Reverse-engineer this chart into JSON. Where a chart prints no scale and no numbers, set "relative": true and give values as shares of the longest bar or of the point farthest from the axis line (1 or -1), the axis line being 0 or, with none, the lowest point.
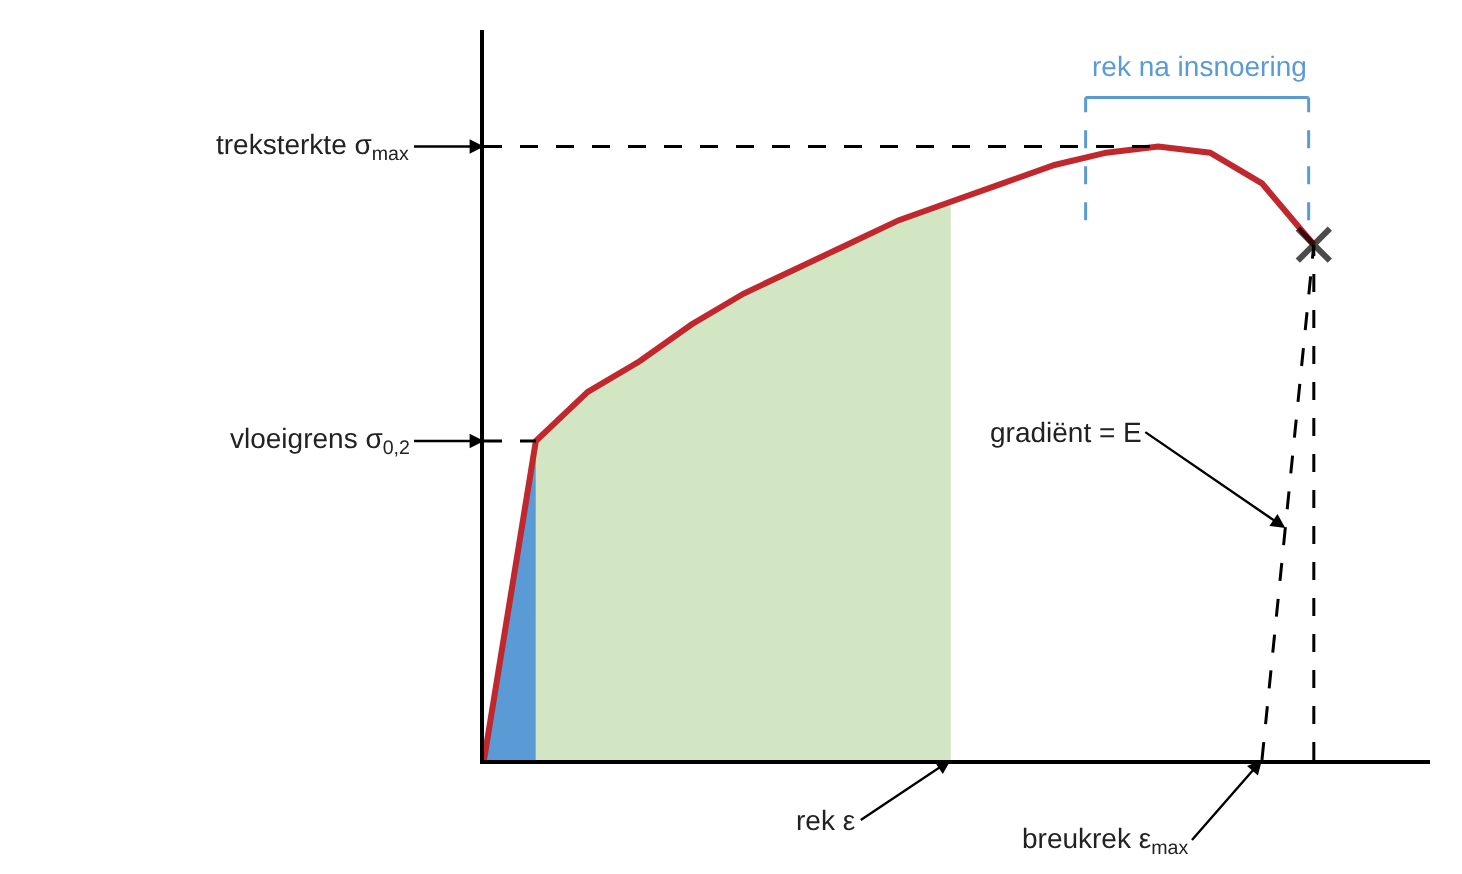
{
  "chart_data": {
    "type": "line",
    "relative": true,
    "grid": false,
    "legend": false,
    "categories": [
      null,
      null,
      null,
      null,
      null,
      null,
      null,
      null,
      null,
      null,
      null,
      null,
      null,
      null,
      null,
      null,
      null
    ],
    "series": [
      {
        "color": "#c0282d",
        "values": [
          0,
          0.52,
          0.6,
          0.65,
          0.71,
          0.76,
          0.8,
          0.84,
          0.88,
          0.91,
          0.94,
          0.97,
          0.99,
          1.0,
          0.99,
          0.94,
          0.84
        ]
      },
      {
        "color": "#000000",
        "line_style": "dashed",
        "marker": "cross",
        "values": [
          null,
          null,
          null,
          null,
          null,
          null,
          null,
          null,
          null,
          null,
          null,
          null,
          null,
          null,
          null,
          0,
          0.84
        ]
      }
    ],
    "annotations": [
      "treksterkte σ$_{max}$",
      "vloeigrens σ$_{0,2}$",
      "rek na insnoering",
      "gradiënt = E",
      "rek ε",
      "breukrek ε$_{max}$"
    ]
  }
}
